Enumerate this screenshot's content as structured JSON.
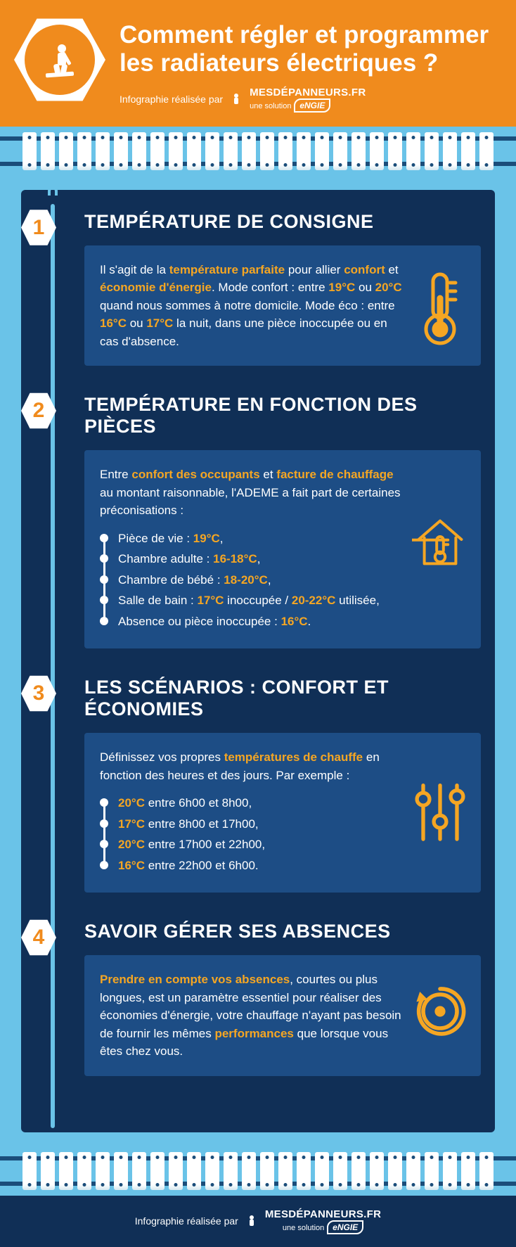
{
  "colors": {
    "orange": "#f08b1d",
    "highlight": "#f5a623",
    "dark_navy": "#102f56",
    "panel_blue": "#1d4d85",
    "sky": "#6ac3e8",
    "white": "#ffffff"
  },
  "header": {
    "title": "Comment régler et programmer les radiateurs électriques ?",
    "credit_prefix": "Infographie réalisée par",
    "brand": "MESDÉPANNEURS.FR",
    "brand_sub": "une solution",
    "brand_parent": "eNGIE",
    "icon": "worker-wrench-icon"
  },
  "sections": [
    {
      "num": "1",
      "title": "TEMPÉRATURE DE CONSIGNE",
      "icon": "thermometer-icon",
      "body": [
        {
          "t": "Il s'agit de la "
        },
        {
          "t": "température parfaite",
          "hl": true
        },
        {
          "t": " pour allier "
        },
        {
          "t": "confort",
          "hl": true
        },
        {
          "t": " et "
        },
        {
          "t": "économie d'énergie",
          "hl": true
        },
        {
          "t": ". Mode confort : entre "
        },
        {
          "t": "19°C",
          "hl": true
        },
        {
          "t": " ou "
        },
        {
          "t": "20°C",
          "hl": true
        },
        {
          "t": " quand nous sommes à notre domicile. Mode éco : entre "
        },
        {
          "t": "16°C",
          "hl": true
        },
        {
          "t": " ou "
        },
        {
          "t": "17°C",
          "hl": true
        },
        {
          "t": " la nuit, dans une pièce inoccupée ou en cas d'absence."
        }
      ]
    },
    {
      "num": "2",
      "title": "TEMPÉRATURE EN FONCTION DES PIÈCES",
      "icon": "house-thermometer-icon",
      "intro": [
        {
          "t": "Entre "
        },
        {
          "t": "confort des occupants",
          "hl": true
        },
        {
          "t": " et "
        },
        {
          "t": "facture de chauffage",
          "hl": true
        },
        {
          "t": " au montant raisonnable, l'ADEME a fait part de certaines préconisations :"
        }
      ],
      "bullets": [
        [
          {
            "t": "Pièce de vie : "
          },
          {
            "t": "19°C",
            "hl": true
          },
          {
            "t": ","
          }
        ],
        [
          {
            "t": "Chambre adulte : "
          },
          {
            "t": "16-18°C",
            "hl": true
          },
          {
            "t": ","
          }
        ],
        [
          {
            "t": "Chambre de bébé : "
          },
          {
            "t": "18-20°C",
            "hl": true
          },
          {
            "t": ","
          }
        ],
        [
          {
            "t": "Salle de bain : "
          },
          {
            "t": "17°C",
            "hl": true
          },
          {
            "t": " inoccupée / "
          },
          {
            "t": "20-22°C",
            "hl": true
          },
          {
            "t": " utilisée,"
          }
        ],
        [
          {
            "t": "Absence ou pièce inoccupée : "
          },
          {
            "t": "16°C",
            "hl": true
          },
          {
            "t": "."
          }
        ]
      ]
    },
    {
      "num": "3",
      "title": "LES SCÉNARIOS : CONFORT ET ÉCONOMIES",
      "icon": "sliders-icon",
      "intro": [
        {
          "t": "Définissez vos propres "
        },
        {
          "t": "températures de chauffe",
          "hl": true
        },
        {
          "t": " en fonction des heures et des jours. Par exemple :"
        }
      ],
      "bullets": [
        [
          {
            "t": "20°C",
            "hl": true
          },
          {
            "t": " entre 6h00 et 8h00,"
          }
        ],
        [
          {
            "t": "17°C",
            "hl": true
          },
          {
            "t": " entre 8h00 et 17h00,"
          }
        ],
        [
          {
            "t": "20°C",
            "hl": true
          },
          {
            "t": " entre 17h00 et 22h00,"
          }
        ],
        [
          {
            "t": "16°C",
            "hl": true
          },
          {
            "t": " entre 22h00 et 6h00."
          }
        ]
      ]
    },
    {
      "num": "4",
      "title": "SAVOIR GÉRER SES ABSENCES",
      "icon": "clock-arrow-icon",
      "body": [
        {
          "t": "Prendre en compte vos absences",
          "hl": true
        },
        {
          "t": ", courtes ou plus longues, est un paramètre essentiel pour réaliser des économies d'énergie, votre chauffage n'ayant pas besoin de fournir les mêmes "
        },
        {
          "t": "performances",
          "hl": true
        },
        {
          "t": " que lorsque vous êtes chez vous."
        }
      ]
    }
  ],
  "footer": {
    "credit_prefix": "Infographie réalisée par",
    "brand": "MESDÉPANNEURS.FR",
    "brand_sub": "une solution",
    "brand_parent": "eNGIE"
  }
}
